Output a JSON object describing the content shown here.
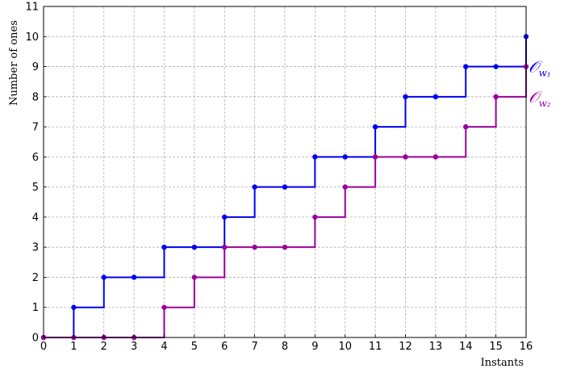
{
  "chart_data": {
    "type": "line",
    "step": true,
    "title": "",
    "xlabel": "Instants",
    "ylabel": "Number of ones",
    "xlim": [
      0,
      16
    ],
    "ylim": [
      0,
      11
    ],
    "grid": true,
    "x": [
      0,
      1,
      2,
      3,
      4,
      5,
      6,
      7,
      8,
      9,
      10,
      11,
      12,
      13,
      14,
      15,
      16
    ],
    "x_ticks": [
      "0",
      "1",
      "2",
      "3",
      "4",
      "5",
      "6",
      "7",
      "8",
      "9",
      "10",
      "11",
      "12",
      "13",
      "14",
      "15",
      "16"
    ],
    "y_ticks": [
      "0",
      "1",
      "2",
      "3",
      "4",
      "5",
      "6",
      "7",
      "8",
      "9",
      "10",
      "11"
    ],
    "series": [
      {
        "name": "O_{w_1}",
        "label_main": "𝒪",
        "label_sub": "w₁",
        "color": "#0000ee",
        "values": [
          0,
          1,
          2,
          2,
          3,
          3,
          4,
          5,
          5,
          6,
          6,
          7,
          8,
          8,
          9,
          9,
          10
        ]
      },
      {
        "name": "O_{w_2}",
        "label_main": "𝒪",
        "label_sub": "w₂",
        "color": "#990099",
        "values": [
          0,
          0,
          0,
          0,
          1,
          2,
          3,
          3,
          3,
          4,
          5,
          6,
          6,
          6,
          7,
          8,
          9
        ]
      }
    ]
  }
}
